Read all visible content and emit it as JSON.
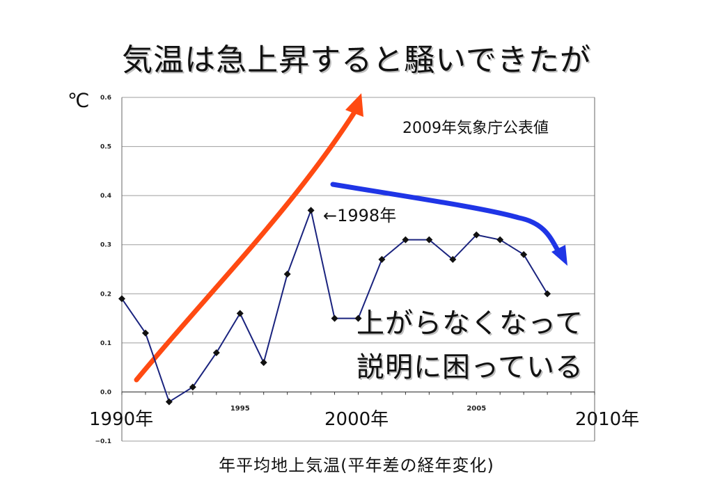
{
  "slide": {
    "title": "気温は急上昇すると騒いできたが",
    "unit": "℃",
    "source_note": "2009年気象庁公表値",
    "annotation_1998": "←1998年",
    "overlay_line1": "上がらなくなって",
    "overlay_line2": "説明に困っている",
    "caption": "年平均地上気温(平年差の経年変化)"
  },
  "colors": {
    "series_line": "#1a237e",
    "rise_arrow": "#ff4a12",
    "fall_arrow": "#1f35e6",
    "grid": "#9e9e9e"
  },
  "chart_data": {
    "type": "line",
    "title": "年平均地上気温(平年差の経年変化)",
    "ylabel": "℃",
    "ylim": [
      -0.1,
      0.6
    ],
    "yticks": [
      "0.6",
      "0.5",
      "0.4",
      "0.3",
      "0.2",
      "0.1",
      "0.0",
      "−0.1"
    ],
    "xlim": [
      1990,
      2010
    ],
    "xtick_labels": [
      {
        "x": 1990,
        "label": "1990年"
      },
      {
        "x": 1995,
        "label": "1995"
      },
      {
        "x": 2000,
        "label": "2000年"
      },
      {
        "x": 2005,
        "label": "2005"
      },
      {
        "x": 2010,
        "label": "2010年"
      }
    ],
    "grid": true,
    "series": [
      {
        "x": [
          1990,
          1991,
          1992,
          1993,
          1994,
          1995,
          1996,
          1997,
          1998,
          1999,
          2000,
          2001,
          2002,
          2003,
          2004,
          2005,
          2006,
          2007,
          2008
        ],
        "values": [
          0.19,
          0.12,
          -0.02,
          0.01,
          0.08,
          0.16,
          0.06,
          0.24,
          0.37,
          0.15,
          0.15,
          0.27,
          0.31,
          0.31,
          0.27,
          0.32,
          0.31,
          0.28,
          0.2
        ]
      }
    ]
  }
}
